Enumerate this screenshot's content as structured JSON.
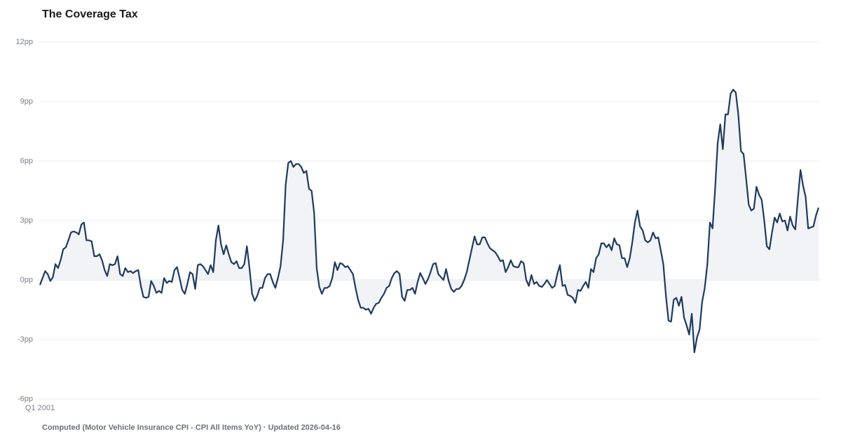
{
  "chart_data": {
    "type": "line",
    "title": "The Coverage Tax",
    "footnote": "Computed (Motor Vehicle Insurance CPI - CPI All Items YoY) · Updated 2026-04-16",
    "categories": [
      "Q1 2001",
      null,
      null,
      null,
      null,
      null,
      null,
      null,
      null,
      null,
      null,
      null,
      null,
      null,
      null,
      null,
      null,
      null,
      null,
      null,
      null,
      null,
      null,
      null,
      null,
      null,
      null,
      null,
      null,
      null,
      null,
      null,
      null,
      null,
      null,
      null,
      null,
      null,
      null,
      null,
      null,
      null,
      null,
      null,
      null,
      null,
      null,
      null,
      null,
      null,
      null,
      null,
      null,
      null,
      null,
      null,
      null,
      null,
      null,
      null,
      null,
      null,
      null,
      null,
      null,
      null,
      null,
      null,
      null,
      null,
      null,
      null,
      null,
      null,
      null,
      null,
      null,
      null,
      null,
      null,
      null,
      null,
      null,
      null,
      null,
      null,
      null,
      null,
      null,
      null,
      null,
      null,
      null,
      null,
      null,
      null,
      null,
      null,
      null,
      null,
      null,
      null,
      null,
      null,
      null,
      null,
      null,
      null,
      null,
      null,
      null,
      null,
      null,
      null,
      null,
      null,
      null,
      null,
      null,
      null,
      null,
      null,
      null,
      null,
      null,
      null,
      null,
      null,
      null,
      null,
      null,
      null,
      null,
      null,
      null,
      null,
      null,
      null,
      null,
      null,
      null,
      null,
      null,
      null,
      null,
      null,
      null,
      null,
      null,
      null,
      null,
      null,
      null,
      null,
      null,
      null,
      null,
      null,
      null,
      null,
      null,
      null,
      null,
      null,
      null,
      null,
      null,
      null,
      null,
      null,
      null,
      null,
      null,
      null,
      null,
      null,
      null,
      null,
      null,
      null,
      null,
      null,
      null,
      null,
      null,
      null,
      null,
      null,
      null,
      null,
      null,
      null,
      null,
      null,
      null,
      null,
      null,
      null,
      null,
      null,
      null,
      null,
      null,
      null,
      null,
      null,
      null,
      null,
      null,
      null,
      null,
      null,
      null,
      null,
      null,
      null,
      null,
      null,
      null,
      null,
      null,
      null,
      null,
      null,
      null,
      null,
      null,
      null,
      null,
      null,
      null,
      null,
      null,
      null,
      null,
      null,
      null,
      null,
      null,
      null,
      null,
      null,
      null,
      null,
      null,
      null,
      null,
      null,
      null,
      null,
      null,
      null,
      null,
      null,
      null,
      null,
      null,
      null,
      null,
      null,
      null,
      null,
      null,
      null,
      null,
      null,
      null,
      null,
      null,
      null,
      null,
      null,
      null,
      null,
      null,
      null,
      null,
      null,
      null,
      null,
      null,
      null,
      null,
      null,
      null,
      null,
      null,
      null,
      null,
      null,
      null,
      null,
      null,
      null,
      null,
      null,
      null,
      null,
      null,
      null,
      null,
      null
    ],
    "series": [
      {
        "color": "#1e3a5f",
        "fill": "#f1f3f6",
        "values": [
          -0.25,
          0.1,
          0.45,
          0.3,
          -0.05,
          0.15,
          0.8,
          0.6,
          1.0,
          1.55,
          1.65,
          2.0,
          2.4,
          2.45,
          2.4,
          2.3,
          2.8,
          2.9,
          2.0,
          2.0,
          1.95,
          1.2,
          1.2,
          1.3,
          1.0,
          0.5,
          0.2,
          0.8,
          0.75,
          0.8,
          1.2,
          0.3,
          0.2,
          0.6,
          0.4,
          0.45,
          0.35,
          0.45,
          0.5,
          -0.3,
          -0.85,
          -0.9,
          -0.85,
          -0.05,
          -0.3,
          -0.65,
          -0.55,
          -0.65,
          0.1,
          -0.15,
          -0.05,
          -0.1,
          0.5,
          0.65,
          0.1,
          -0.5,
          -0.7,
          -0.2,
          0.4,
          0.3,
          -0.45,
          0.75,
          0.8,
          0.7,
          0.5,
          0.3,
          0.75,
          0.4,
          2.0,
          2.75,
          1.8,
          1.3,
          1.75,
          1.3,
          0.9,
          0.8,
          0.95,
          0.6,
          0.6,
          0.8,
          1.7,
          0.6,
          -0.7,
          -1.05,
          -0.8,
          -0.4,
          -0.4,
          0.1,
          0.3,
          0.3,
          -0.1,
          -0.4,
          0.1,
          0.7,
          2.0,
          4.8,
          5.9,
          6.0,
          5.7,
          5.85,
          5.85,
          5.7,
          5.4,
          5.5,
          4.6,
          4.5,
          3.4,
          0.6,
          -0.35,
          -0.7,
          -0.4,
          -0.4,
          -0.3,
          0.1,
          0.9,
          0.5,
          0.85,
          0.8,
          0.65,
          0.7,
          0.5,
          0.3,
          -0.4,
          -1.0,
          -1.4,
          -1.4,
          -1.5,
          -1.45,
          -1.7,
          -1.4,
          -1.2,
          -1.15,
          -0.9,
          -0.7,
          -0.4,
          -0.3,
          0.1,
          0.35,
          0.45,
          0.3,
          -0.85,
          -1.05,
          -0.5,
          -0.5,
          -0.4,
          -0.7,
          -0.1,
          0.35,
          0.1,
          -0.2,
          0.05,
          0.4,
          0.8,
          0.85,
          0.3,
          0.15,
          0.0,
          0.55,
          -0.05,
          -0.45,
          -0.6,
          -0.45,
          -0.45,
          -0.3,
          0.0,
          0.4,
          1.0,
          1.6,
          2.2,
          1.8,
          1.8,
          2.15,
          2.15,
          1.85,
          1.6,
          1.5,
          1.4,
          1.2,
          0.95,
          1.0,
          0.4,
          0.65,
          1.0,
          0.7,
          0.65,
          0.65,
          0.95,
          0.85,
          0.0,
          -0.3,
          0.25,
          -0.2,
          -0.1,
          -0.3,
          -0.35,
          -0.2,
          0.0,
          -0.2,
          -0.4,
          -0.3,
          0.3,
          0.75,
          -0.3,
          -0.25,
          -0.75,
          -0.8,
          -0.9,
          -1.15,
          -0.5,
          -0.55,
          -0.3,
          -0.1,
          -0.4,
          0.55,
          0.4,
          1.1,
          1.3,
          1.85,
          1.85,
          1.65,
          1.8,
          1.5,
          2.1,
          1.8,
          1.75,
          1.1,
          1.1,
          0.65,
          1.1,
          1.9,
          2.9,
          3.5,
          2.7,
          2.5,
          2.0,
          1.9,
          2.0,
          2.4,
          2.1,
          2.15,
          1.5,
          0.8,
          -0.8,
          -2.05,
          -2.1,
          -1.0,
          -0.9,
          -1.3,
          -0.85,
          -1.9,
          -2.3,
          -2.75,
          -1.7,
          -3.65,
          -2.9,
          -2.5,
          -1.1,
          -0.4,
          0.8,
          2.9,
          2.6,
          4.6,
          6.9,
          7.85,
          6.6,
          8.35,
          8.35,
          9.4,
          9.6,
          9.45,
          8.3,
          6.5,
          6.35,
          5.1,
          3.8,
          3.5,
          3.6,
          4.7,
          4.3,
          4.05,
          3.0,
          1.7,
          1.55,
          2.4,
          3.15,
          2.9,
          3.35,
          2.95,
          3.0,
          2.5,
          3.2,
          2.75,
          2.55,
          4.1,
          5.55,
          4.75,
          4.2,
          2.6,
          2.65,
          2.7,
          3.25,
          3.65
        ]
      }
    ],
    "ylim": [
      -6,
      12
    ],
    "yticks": [
      {
        "value": -6,
        "label": "-6pp"
      },
      {
        "value": -3,
        "label": "-3pp"
      },
      {
        "value": 0,
        "label": "0pp"
      },
      {
        "value": 3,
        "label": "3pp"
      },
      {
        "value": 6,
        "label": "6pp"
      },
      {
        "value": 9,
        "label": "9pp"
      },
      {
        "value": 12,
        "label": "12pp"
      }
    ],
    "grid": true
  }
}
